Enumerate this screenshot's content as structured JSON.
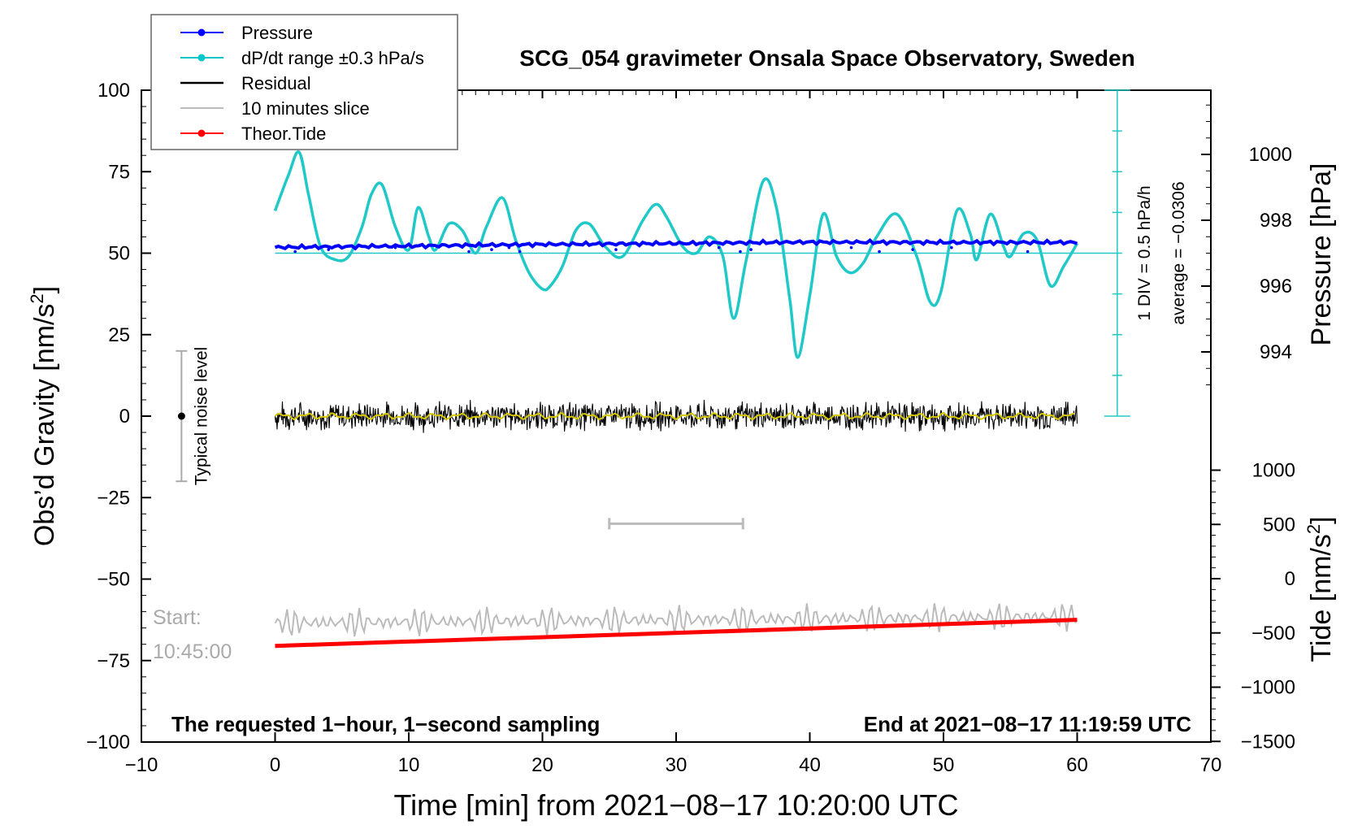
{
  "chart_data": {
    "type": "line",
    "title": "SCG_054 gravimeter Onsala Space Observatory, Sweden",
    "xlabel": "Time [min] from 2021−08−17 10:20:00 UTC",
    "ylabel_left": "Obs’d Gravity [nm/s",
    "ylabel_left_sup": "2",
    "ylabel_left_tail": "]",
    "ylabel_pressure": "Pressure [hPa]",
    "ylabel_tide": "Tide [nm/s",
    "ylabel_tide_sup": "2",
    "ylabel_tide_tail": "]",
    "xlim": [
      -10,
      70
    ],
    "ylim": [
      -100,
      100
    ],
    "x_ticks": [
      -10,
      0,
      10,
      20,
      30,
      40,
      50,
      60,
      70
    ],
    "x_tick_labels": [
      "−10",
      "0",
      "10",
      "20",
      "30",
      "40",
      "50",
      "60",
      "70"
    ],
    "y_ticks": [
      100,
      75,
      50,
      25,
      0,
      -25,
      -50,
      -75,
      -100
    ],
    "y_tick_labels": [
      "100",
      "75",
      "50",
      "25",
      "0",
      "−25",
      "−50",
      "−75",
      "−100"
    ],
    "pressure_ticks": [
      1000,
      998,
      996,
      994
    ],
    "pressure_tick_labels": [
      "1000",
      "998",
      "996",
      "994"
    ],
    "pressure_ylim": [
      992,
      1002
    ],
    "tide_ticks": [
      1000,
      500,
      0,
      -500,
      -1000,
      -1500
    ],
    "tide_tick_labels": [
      "1000",
      "500",
      "0",
      "−500",
      "−1000",
      "−1500"
    ],
    "tide_ylim": [
      -1500,
      1000
    ],
    "legend": [
      {
        "label": "Pressure",
        "color": "#0000ff",
        "marker": true
      },
      {
        "label": "dP/dt range ±0.3 hPa/s",
        "color": "#00c8c8",
        "marker": true
      },
      {
        "label": "Residual",
        "color": "#000000",
        "marker": false
      },
      {
        "label": "10 minutes slice",
        "color": "#bbbbbb",
        "marker": false
      },
      {
        "label": "Theor.Tide",
        "color": "#ff0000",
        "marker": true
      }
    ],
    "series": [
      {
        "name": "dP/dt",
        "color": "#20c8c8",
        "x": [
          0,
          1,
          1.8,
          2.5,
          3.4,
          4.5,
          5.5,
          6.5,
          7.2,
          8,
          9,
          10,
          10.7,
          11.5,
          12,
          13,
          14,
          15,
          15.8,
          17,
          18,
          19,
          20,
          20.6,
          21.5,
          22.5,
          23.5,
          24.7,
          26,
          27.5,
          28.5,
          29.3,
          30.5,
          31.5,
          32.5,
          33.5,
          34.3,
          35.2,
          36.5,
          37.5,
          38.5,
          39.1,
          40,
          41,
          42,
          43,
          44,
          45,
          46.5,
          48,
          49,
          49.8,
          51,
          52,
          52.5,
          53.5,
          54.5,
          55,
          56,
          57,
          58,
          59,
          60
        ],
        "values": [
          63,
          74,
          81,
          68,
          52,
          48,
          49,
          58,
          68,
          71,
          58,
          51,
          64,
          55,
          51,
          59,
          57,
          50,
          58,
          67,
          54,
          44,
          39,
          40,
          46,
          57,
          59,
          52,
          49,
          60,
          65,
          61,
          52,
          50,
          55,
          49,
          30,
          47,
          72,
          64,
          36,
          18,
          37,
          62,
          49,
          44,
          47,
          55,
          62,
          49,
          35,
          38,
          63,
          56,
          48,
          62,
          52,
          49,
          56,
          54,
          40,
          46,
          53
        ]
      },
      {
        "name": "Pressure",
        "color": "#0000ff",
        "x": [
          0,
          10,
          20,
          30,
          40,
          50,
          60
        ],
        "values": [
          51.8,
          52.2,
          52.7,
          53.0,
          53.4,
          53.3,
          53.3
        ]
      },
      {
        "name": "Residual",
        "color": "#000000",
        "x": [
          0,
          60
        ],
        "values": [
          0,
          0
        ],
        "amplitude": 3.5
      },
      {
        "name": "10 minutes slice",
        "color": "#bbbbbb",
        "x": [
          0,
          60
        ],
        "values": [
          -63.5,
          -61.5
        ],
        "amplitude": 3.5
      },
      {
        "name": "Theor.Tide",
        "color": "#ff0000",
        "x": [
          0,
          60
        ],
        "values": [
          -70.5,
          -62.5
        ]
      }
    ],
    "reference_line_y": 50,
    "dPdt_scale": {
      "text_div": "1 DIV = 0.5 hPa/h",
      "text_avg": "average = −0.0306",
      "x": 63,
      "y_top": 100,
      "y_bottom": 0
    },
    "noise_bar": {
      "label": "Typical noise level",
      "x": -7,
      "y_center": 0,
      "half_range": 20
    },
    "slice_bar": {
      "x_start": 25,
      "x_end": 35,
      "y": -33
    },
    "start_label": {
      "line1": "Start:",
      "line2": "10:45:00"
    },
    "footer_left": "The requested 1−hour, 1−second sampling",
    "footer_right": "End at 2021−08−17 11:19:59 UTC"
  }
}
